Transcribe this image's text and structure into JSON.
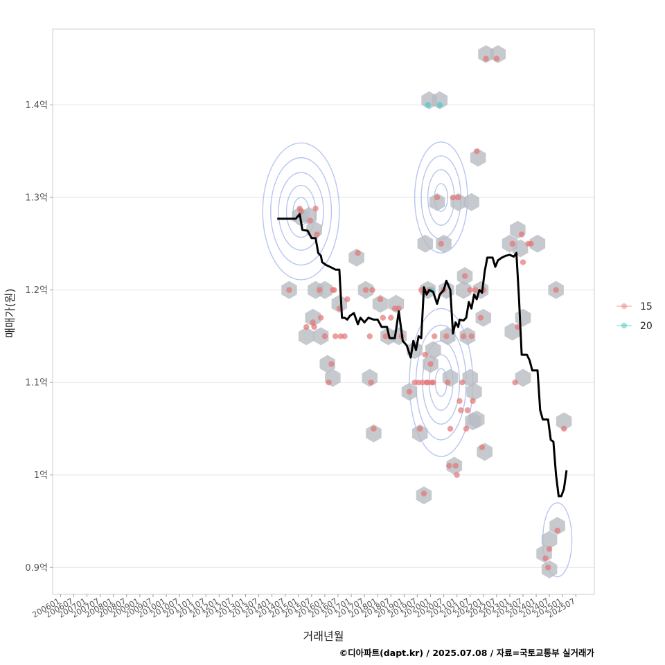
{
  "chart_data": {
    "type": "scatter",
    "xlabel": "거래년월",
    "ylabel": "매매가(원)",
    "caption": "©디아파트(dapt.kr) / 2025.07.08 / 자료=국토교통부 실거래가",
    "x_ticks": [
      "200601",
      "200607",
      "200701",
      "200707",
      "200801",
      "200807",
      "200901",
      "200907",
      "201001",
      "201007",
      "201101",
      "201107",
      "201201",
      "201207",
      "201301",
      "201307",
      "201401",
      "201407",
      "201501",
      "201507",
      "201601",
      "201607",
      "201701",
      "201707",
      "201801",
      "201807",
      "201901",
      "201907",
      "202001",
      "202007",
      "202101",
      "202107",
      "202201",
      "202207",
      "202301",
      "202307",
      "202401",
      "202407",
      "202501",
      "202507"
    ],
    "y_ticks": [
      {
        "value": 0.9,
        "label": "0.9억"
      },
      {
        "value": 1.0,
        "label": "1억"
      },
      {
        "value": 1.1,
        "label": "1.1억"
      },
      {
        "value": 1.2,
        "label": "1.2억"
      },
      {
        "value": 1.3,
        "label": "1.3억"
      },
      {
        "value": 1.4,
        "label": "1.4억"
      }
    ],
    "xlim": [
      2005.7,
      2026.2
    ],
    "ylim": [
      0.871,
      1.482
    ],
    "legend": [
      {
        "label": "15",
        "color": "#f08080"
      },
      {
        "label": "20",
        "color": "#40c8c8"
      }
    ],
    "colors": {
      "series15": "#e57373",
      "series20": "#4cc9c9",
      "hex": "#b8bcc2",
      "contour": "#aabbee",
      "trend": "#000000",
      "grid": "#e2e2e2"
    },
    "series": [
      {
        "name": "15",
        "points": [
          [
            2015.05,
            1.288
          ],
          [
            2015.1,
            1.285
          ],
          [
            2015.65,
            1.288
          ],
          [
            2015.7,
            1.26
          ],
          [
            2015.45,
            1.275
          ],
          [
            2014.65,
            1.2
          ],
          [
            2015.3,
            1.16
          ],
          [
            2015.55,
            1.165
          ],
          [
            2015.6,
            1.16
          ],
          [
            2015.8,
            1.2
          ],
          [
            2015.85,
            1.17
          ],
          [
            2016.0,
            1.15
          ],
          [
            2016.15,
            1.1
          ],
          [
            2016.25,
            1.12
          ],
          [
            2016.3,
            1.2
          ],
          [
            2016.35,
            1.2
          ],
          [
            2016.4,
            1.15
          ],
          [
            2016.55,
            1.18
          ],
          [
            2016.6,
            1.15
          ],
          [
            2016.75,
            1.15
          ],
          [
            2016.85,
            1.19
          ],
          [
            2017.25,
            1.24
          ],
          [
            2017.55,
            1.2
          ],
          [
            2017.7,
            1.15
          ],
          [
            2017.75,
            1.1
          ],
          [
            2017.8,
            1.2
          ],
          [
            2017.85,
            1.05
          ],
          [
            2018.1,
            1.19
          ],
          [
            2018.2,
            1.17
          ],
          [
            2018.3,
            1.15
          ],
          [
            2018.5,
            1.17
          ],
          [
            2018.65,
            1.18
          ],
          [
            2018.8,
            1.18
          ],
          [
            2018.9,
            1.15
          ],
          [
            2019.2,
            1.09
          ],
          [
            2019.4,
            1.1
          ],
          [
            2019.55,
            1.1
          ],
          [
            2019.6,
            1.05
          ],
          [
            2019.65,
            1.2
          ],
          [
            2019.7,
            1.1
          ],
          [
            2019.75,
            0.98
          ],
          [
            2019.8,
            1.13
          ],
          [
            2019.85,
            1.1
          ],
          [
            2019.9,
            1.1
          ],
          [
            2019.95,
            1.2
          ],
          [
            2020.0,
            1.12
          ],
          [
            2020.05,
            1.1
          ],
          [
            2020.1,
            1.1
          ],
          [
            2020.15,
            1.15
          ],
          [
            2020.25,
            1.3
          ],
          [
            2020.4,
            1.25
          ],
          [
            2020.5,
            1.2
          ],
          [
            2020.6,
            1.15
          ],
          [
            2020.65,
            1.1
          ],
          [
            2020.7,
            1.01
          ],
          [
            2020.75,
            1.05
          ],
          [
            2020.85,
            1.3
          ],
          [
            2020.95,
            1.01
          ],
          [
            2021.0,
            1.0
          ],
          [
            2021.05,
            1.3
          ],
          [
            2021.1,
            1.08
          ],
          [
            2021.15,
            1.07
          ],
          [
            2021.2,
            1.1
          ],
          [
            2021.25,
            1.15
          ],
          [
            2021.3,
            1.215
          ],
          [
            2021.35,
            1.05
          ],
          [
            2021.4,
            1.07
          ],
          [
            2021.5,
            1.2
          ],
          [
            2021.55,
            1.15
          ],
          [
            2021.6,
            1.08
          ],
          [
            2021.7,
            1.2
          ],
          [
            2021.75,
            1.35
          ],
          [
            2021.9,
            1.17
          ],
          [
            2021.95,
            1.03
          ],
          [
            2022.0,
            1.2
          ],
          [
            2022.1,
            1.45
          ],
          [
            2022.5,
            1.45
          ],
          [
            2023.1,
            1.25
          ],
          [
            2023.2,
            1.1
          ],
          [
            2023.3,
            1.16
          ],
          [
            2023.45,
            1.26
          ],
          [
            2023.5,
            1.23
          ],
          [
            2023.7,
            1.25
          ],
          [
            2023.8,
            1.25
          ],
          [
            2024.35,
            0.91
          ],
          [
            2024.45,
            0.9
          ],
          [
            2024.5,
            0.92
          ],
          [
            2024.75,
            1.2
          ],
          [
            2024.8,
            0.94
          ],
          [
            2025.05,
            1.05
          ]
        ]
      },
      {
        "name": "20",
        "points": [
          [
            2019.9,
            1.4
          ],
          [
            2020.35,
            1.4
          ],
          [
            2020.05,
            1.2
          ]
        ]
      }
    ],
    "hexbins": [
      [
        2015.05,
        1.28
      ],
      [
        2015.4,
        1.28
      ],
      [
        2015.6,
        1.265
      ],
      [
        2014.65,
        1.2
      ],
      [
        2015.65,
        1.2
      ],
      [
        2016.0,
        1.2
      ],
      [
        2015.3,
        1.15
      ],
      [
        2015.55,
        1.17
      ],
      [
        2015.85,
        1.15
      ],
      [
        2016.1,
        1.12
      ],
      [
        2016.3,
        1.105
      ],
      [
        2016.55,
        1.185
      ],
      [
        2017.2,
        1.235
      ],
      [
        2017.55,
        1.2
      ],
      [
        2017.7,
        1.105
      ],
      [
        2017.85,
        1.045
      ],
      [
        2018.1,
        1.185
      ],
      [
        2018.4,
        1.15
      ],
      [
        2018.7,
        1.185
      ],
      [
        2018.8,
        1.15
      ],
      [
        2019.2,
        1.09
      ],
      [
        2019.4,
        1.135
      ],
      [
        2019.6,
        1.045
      ],
      [
        2019.75,
        0.978
      ],
      [
        2019.95,
        1.405
      ],
      [
        2019.8,
        1.25
      ],
      [
        2019.9,
        1.2
      ],
      [
        2020.0,
        1.12
      ],
      [
        2020.25,
        1.295
      ],
      [
        2020.5,
        1.25
      ],
      [
        2020.6,
        1.2
      ],
      [
        2020.65,
        1.15
      ],
      [
        2020.75,
        1.105
      ],
      [
        2020.9,
        1.01
      ],
      [
        2021.05,
        1.295
      ],
      [
        2021.25,
        1.2
      ],
      [
        2021.3,
        1.215
      ],
      [
        2021.4,
        1.15
      ],
      [
        2021.5,
        1.105
      ],
      [
        2021.55,
        1.295
      ],
      [
        2021.6,
        1.058
      ],
      [
        2021.75,
        1.06
      ],
      [
        2021.65,
        1.09
      ],
      [
        2021.8,
        1.343
      ],
      [
        2021.9,
        1.2
      ],
      [
        2022.0,
        1.17
      ],
      [
        2022.05,
        1.025
      ],
      [
        2022.1,
        1.455
      ],
      [
        2022.55,
        1.455
      ],
      [
        2023.0,
        1.25
      ],
      [
        2023.1,
        1.155
      ],
      [
        2023.3,
        1.265
      ],
      [
        2023.4,
        1.245
      ],
      [
        2023.5,
        1.17
      ],
      [
        2023.5,
        1.105
      ],
      [
        2024.05,
        1.25
      ],
      [
        2024.3,
        0.915
      ],
      [
        2024.5,
        0.93
      ],
      [
        2024.5,
        0.898
      ],
      [
        2024.75,
        1.2
      ],
      [
        2024.8,
        0.945
      ],
      [
        2025.05,
        1.058
      ],
      [
        2020.35,
        1.405
      ],
      [
        2020.1,
        1.135
      ]
    ],
    "trend": [
      [
        2014.2,
        1.277
      ],
      [
        2014.5,
        1.277
      ],
      [
        2014.9,
        1.277
      ],
      [
        2015.05,
        1.282
      ],
      [
        2015.15,
        1.265
      ],
      [
        2015.35,
        1.264
      ],
      [
        2015.5,
        1.256
      ],
      [
        2015.65,
        1.256
      ],
      [
        2015.75,
        1.24
      ],
      [
        2015.85,
        1.237
      ],
      [
        2015.9,
        1.23
      ],
      [
        2016.05,
        1.227
      ],
      [
        2016.2,
        1.225
      ],
      [
        2016.4,
        1.222
      ],
      [
        2016.55,
        1.222
      ],
      [
        2016.65,
        1.17
      ],
      [
        2016.75,
        1.17
      ],
      [
        2016.85,
        1.168
      ],
      [
        2016.95,
        1.172
      ],
      [
        2017.1,
        1.175
      ],
      [
        2017.25,
        1.163
      ],
      [
        2017.35,
        1.17
      ],
      [
        2017.5,
        1.165
      ],
      [
        2017.65,
        1.17
      ],
      [
        2017.85,
        1.168
      ],
      [
        2018.0,
        1.168
      ],
      [
        2018.15,
        1.16
      ],
      [
        2018.35,
        1.16
      ],
      [
        2018.45,
        1.148
      ],
      [
        2018.65,
        1.148
      ],
      [
        2018.8,
        1.177
      ],
      [
        2018.95,
        1.145
      ],
      [
        2019.1,
        1.14
      ],
      [
        2019.25,
        1.127
      ],
      [
        2019.35,
        1.145
      ],
      [
        2019.45,
        1.135
      ],
      [
        2019.55,
        1.15
      ],
      [
        2019.65,
        1.148
      ],
      [
        2019.75,
        1.203
      ],
      [
        2019.85,
        1.195
      ],
      [
        2019.95,
        1.2
      ],
      [
        2020.1,
        1.198
      ],
      [
        2020.25,
        1.185
      ],
      [
        2020.35,
        1.195
      ],
      [
        2020.5,
        1.2
      ],
      [
        2020.6,
        1.21
      ],
      [
        2020.75,
        1.2
      ],
      [
        2020.85,
        1.153
      ],
      [
        2020.95,
        1.165
      ],
      [
        2021.05,
        1.16
      ],
      [
        2021.1,
        1.168
      ],
      [
        2021.25,
        1.167
      ],
      [
        2021.35,
        1.17
      ],
      [
        2021.45,
        1.187
      ],
      [
        2021.55,
        1.18
      ],
      [
        2021.65,
        1.195
      ],
      [
        2021.75,
        1.19
      ],
      [
        2021.85,
        1.2
      ],
      [
        2021.95,
        1.197
      ],
      [
        2022.05,
        1.22
      ],
      [
        2022.15,
        1.235
      ],
      [
        2022.35,
        1.235
      ],
      [
        2022.45,
        1.225
      ],
      [
        2022.55,
        1.232
      ],
      [
        2022.7,
        1.235
      ],
      [
        2022.85,
        1.237
      ],
      [
        2023.0,
        1.238
      ],
      [
        2023.15,
        1.236
      ],
      [
        2023.25,
        1.24
      ],
      [
        2023.35,
        1.19
      ],
      [
        2023.45,
        1.13
      ],
      [
        2023.65,
        1.13
      ],
      [
        2023.75,
        1.124
      ],
      [
        2023.85,
        1.113
      ],
      [
        2024.05,
        1.113
      ],
      [
        2024.15,
        1.07
      ],
      [
        2024.25,
        1.06
      ],
      [
        2024.45,
        1.06
      ],
      [
        2024.55,
        1.038
      ],
      [
        2024.65,
        1.036
      ],
      [
        2024.75,
        1.0
      ],
      [
        2024.85,
        0.977
      ],
      [
        2024.95,
        0.977
      ],
      [
        2025.05,
        0.985
      ],
      [
        2025.15,
        1.005
      ]
    ],
    "contours": [
      {
        "cx": 2015.1,
        "cy": 1.285,
        "radii": [
          [
            0.3,
            0.015
          ],
          [
            0.55,
            0.028
          ],
          [
            0.85,
            0.042
          ],
          [
            1.15,
            0.058
          ],
          [
            1.45,
            0.074
          ]
        ]
      },
      {
        "cx": 2020.4,
        "cy": 1.3,
        "radii": [
          [
            0.25,
            0.015
          ],
          [
            0.5,
            0.03
          ],
          [
            0.75,
            0.045
          ],
          [
            1.0,
            0.06
          ]
        ]
      },
      {
        "cx": 2020.4,
        "cy": 1.1,
        "radii": [
          [
            0.22,
            0.015
          ],
          [
            0.45,
            0.03
          ],
          [
            0.7,
            0.045
          ],
          [
            0.95,
            0.062
          ],
          [
            1.2,
            0.08
          ]
        ]
      },
      {
        "cx": 2024.8,
        "cy": 0.93,
        "radii": [
          [
            0.55,
            0.04
          ]
        ]
      }
    ]
  }
}
